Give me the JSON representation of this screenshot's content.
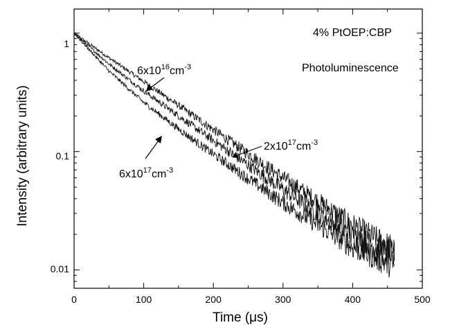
{
  "chart_data": {
    "type": "line",
    "title": "",
    "xlabel": "Time (μs)",
    "ylabel": "Intensity (arbitrary units)",
    "xlim": [
      0,
      500
    ],
    "ylim": [
      0.007,
      1.6
    ],
    "yscale": "log",
    "xticks": [
      0,
      100,
      200,
      300,
      400,
      500
    ],
    "xtick_labels": [
      "0",
      "100",
      "200",
      "300",
      "400",
      "500"
    ],
    "yticks": [
      0.01,
      0.1,
      1
    ],
    "ytick_labels": [
      "0.01",
      "0.1",
      "1"
    ],
    "grid": false,
    "annotations": {
      "sample": "4% PtOEP:CBP",
      "method": "Photoluminescence"
    },
    "series": [
      {
        "name": "6x10^16cm^-3",
        "label_base": "6x10",
        "label_exp": "16",
        "label_unit": "cm",
        "label_unit_exp": "-3",
        "x": [
          0,
          50,
          100,
          150,
          200,
          250,
          300,
          350,
          400,
          460
        ],
        "y": [
          1.0,
          0.62,
          0.39,
          0.245,
          0.153,
          0.096,
          0.06,
          0.038,
          0.024,
          0.0148
        ]
      },
      {
        "name": "2x10^17cm^-3",
        "label_base": "2x10",
        "label_exp": "17",
        "label_unit": "cm",
        "label_unit_exp": "-3",
        "x": [
          0,
          50,
          100,
          150,
          200,
          250,
          300,
          350,
          400,
          460
        ],
        "y": [
          1.0,
          0.55,
          0.325,
          0.2,
          0.124,
          0.077,
          0.048,
          0.03,
          0.0195,
          0.0132
        ]
      },
      {
        "name": "6x10^17cm^-3",
        "label_base": "6x10",
        "label_exp": "17",
        "label_unit": "cm",
        "label_unit_exp": "-3",
        "x": [
          0,
          50,
          100,
          150,
          200,
          250,
          300,
          350,
          400,
          460
        ],
        "y": [
          1.0,
          0.48,
          0.26,
          0.155,
          0.095,
          0.059,
          0.037,
          0.024,
          0.0155,
          0.0108
        ]
      }
    ]
  }
}
